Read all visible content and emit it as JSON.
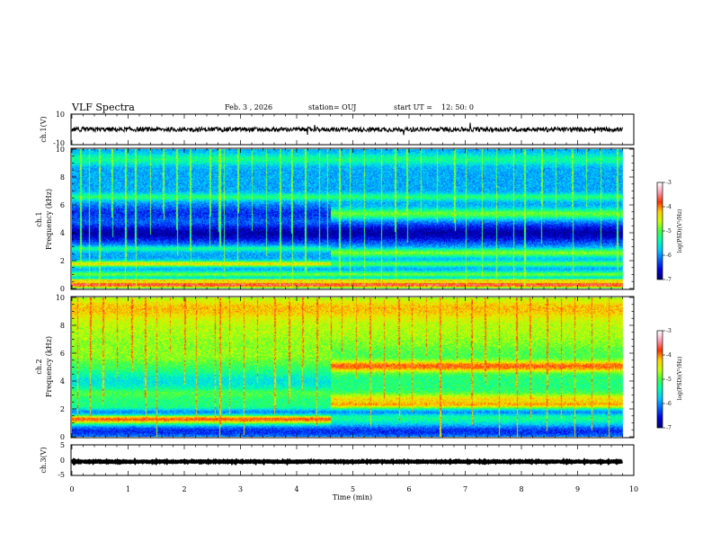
{
  "header": {
    "title": "VLF Spectra",
    "date": "Feb. 3  , 2026",
    "station": "station= OUJ",
    "start_label": "start  UT  =",
    "start_time": "12: 50: 0"
  },
  "colors": {
    "colormap": [
      "#00007a",
      "#0000e0",
      "#0060ff",
      "#00c8ff",
      "#00ffb0",
      "#40ff40",
      "#c8ff00",
      "#ffd000",
      "#ff3000",
      "#ff9ab0",
      "#ffffff"
    ],
    "trace": "#000000",
    "axis": "#000000"
  },
  "chart_data": [
    {
      "type": "line",
      "id": "ch1-waveform",
      "ylabel": "ch.1(V)",
      "ylim": [
        -10,
        10
      ],
      "yticks": [
        "10",
        "-10"
      ],
      "xlim": [
        0,
        10
      ],
      "note": "noisy waveform centred near 0 V spanning about 0 to 9.8 min",
      "mean": 0,
      "amplitude": 1.5
    },
    {
      "type": "heatmap",
      "id": "ch1-spectrogram",
      "ylabel_channel": "ch.1",
      "ylabel": "Frequency (kHz)",
      "ylim": [
        0,
        10
      ],
      "yticks": [
        "0",
        "2",
        "4",
        "6",
        "8",
        "10"
      ],
      "xlim": [
        0,
        10
      ],
      "data_end_min": 9.8,
      "change_time_min": 4.6,
      "colorbar": {
        "label": "log(PSD)(V²/Hz)",
        "range": [
          -7,
          -3
        ],
        "ticks": [
          "-3",
          "-4",
          "-5",
          "-6",
          "-7"
        ]
      },
      "base_log_psd": -5.9,
      "bands": [
        {
          "f": 0.3,
          "w": 0.25,
          "v": -3.6,
          "t0": 0,
          "t1": 9.8
        },
        {
          "f": 0.6,
          "w": 0.12,
          "v": -4.2,
          "t0": 0,
          "t1": 9.8
        },
        {
          "f": 1.05,
          "w": 0.2,
          "v": -4.9,
          "t0": 0,
          "t1": 9.8
        },
        {
          "f": 1.8,
          "w": 0.2,
          "v": -4.3,
          "t0": 0,
          "t1": 4.6
        },
        {
          "f": 1.8,
          "w": 0.2,
          "v": -5.0,
          "t0": 4.6,
          "t1": 9.8
        },
        {
          "f": 2.6,
          "w": 0.3,
          "v": -4.8,
          "t0": 4.6,
          "t1": 9.8
        },
        {
          "f": 2.9,
          "w": 0.2,
          "v": -5.2,
          "t0": 0,
          "t1": 4.6
        },
        {
          "f": 4.0,
          "w": 0.7,
          "v": -6.8,
          "t0": 0,
          "t1": 9.8
        },
        {
          "f": 5.4,
          "w": 0.35,
          "v": -4.9,
          "t0": 4.6,
          "t1": 9.8
        },
        {
          "f": 5.4,
          "w": 0.6,
          "v": -6.4,
          "t0": 0,
          "t1": 4.6
        },
        {
          "f": 6.6,
          "w": 0.25,
          "v": -5.2,
          "t0": 0,
          "t1": 9.8
        },
        {
          "f": 9.3,
          "w": 0.4,
          "v": -5.3,
          "t0": 0,
          "t1": 9.8
        }
      ],
      "spikes_min": [
        0.15,
        0.3,
        0.48,
        0.7,
        0.95,
        1.12,
        1.4,
        1.62,
        1.85,
        2.1,
        2.45,
        2.6,
        2.62,
        2.7,
        2.95,
        3.2,
        3.45,
        3.7,
        3.9,
        4.15,
        4.4,
        4.55,
        4.75,
        4.95,
        5.2,
        5.5,
        5.75,
        5.95,
        6.2,
        6.5,
        6.8,
        7.0,
        7.3,
        7.55,
        7.85,
        8.05,
        8.35,
        8.6,
        8.9,
        9.15,
        9.4,
        9.7
      ],
      "spike_log_psd": -4.6
    },
    {
      "type": "heatmap",
      "id": "ch2-spectrogram",
      "ylabel_channel": "ch.2",
      "ylabel": "Frequency (kHz)",
      "ylim": [
        0,
        10
      ],
      "yticks": [
        "0",
        "2",
        "4",
        "6",
        "8",
        "10"
      ],
      "xlim": [
        0,
        10
      ],
      "data_end_min": 9.8,
      "change_time_min": 4.6,
      "colorbar": {
        "label": "log(PSD)(V²/Hz)",
        "range": [
          -7,
          -3
        ],
        "ticks": [
          "-3",
          "-4",
          "-5",
          "-6",
          "-7"
        ]
      },
      "base_log_psd": -5.2,
      "bands": [
        {
          "f": 0.4,
          "w": 0.6,
          "v": -6.4,
          "t0": 0,
          "t1": 9.8
        },
        {
          "f": 1.3,
          "w": 0.3,
          "v": -3.8,
          "t0": 0,
          "t1": 4.6
        },
        {
          "f": 1.8,
          "w": 0.25,
          "v": -6.0,
          "t0": 0,
          "t1": 9.8
        },
        {
          "f": 2.4,
          "w": 0.25,
          "v": -3.9,
          "t0": 4.6,
          "t1": 9.8
        },
        {
          "f": 2.7,
          "w": 0.4,
          "v": -4.3,
          "t0": 4.6,
          "t1": 9.8
        },
        {
          "f": 3.2,
          "w": 0.3,
          "v": -4.9,
          "t0": 0,
          "t1": 4.6
        },
        {
          "f": 4.0,
          "w": 0.6,
          "v": -5.6,
          "t0": 0,
          "t1": 4.6
        },
        {
          "f": 5.1,
          "w": 0.4,
          "v": -3.8,
          "t0": 4.6,
          "t1": 9.8
        },
        {
          "f": 6.0,
          "w": 0.8,
          "v": -4.8,
          "t0": 0,
          "t1": 4.6
        },
        {
          "f": 7.5,
          "w": 1.5,
          "v": -4.7,
          "t0": 0,
          "t1": 9.8
        },
        {
          "f": 9.2,
          "w": 1.0,
          "v": -4.2,
          "t0": 0,
          "t1": 9.8
        }
      ],
      "spikes_min": [
        0.1,
        0.32,
        0.55,
        0.8,
        1.05,
        1.3,
        1.5,
        1.75,
        2.0,
        2.2,
        2.55,
        2.62,
        2.8,
        3.05,
        3.3,
        3.6,
        3.85,
        4.1,
        4.35,
        4.6,
        4.8,
        5.05,
        5.3,
        5.55,
        5.8,
        6.05,
        6.3,
        6.55,
        6.85,
        7.1,
        7.35,
        7.6,
        7.9,
        8.15,
        8.45,
        8.7,
        8.95,
        9.25,
        9.55
      ],
      "spike_log_psd": -3.8
    },
    {
      "type": "line",
      "id": "ch3-waveform",
      "ylabel": "ch.3(V)",
      "ylim": [
        -5,
        5
      ],
      "yticks": [
        "5",
        "0",
        "-5"
      ],
      "xlim": [
        0,
        10
      ],
      "note": "flat trace near -0.5 V spanning about 0 to 9.8 min",
      "mean": -0.5,
      "amplitude": 0.3,
      "xlabel": "Time  (min)",
      "xticks": [
        "0",
        "1",
        "2",
        "3",
        "4",
        "5",
        "6",
        "7",
        "8",
        "9",
        "10"
      ]
    }
  ]
}
